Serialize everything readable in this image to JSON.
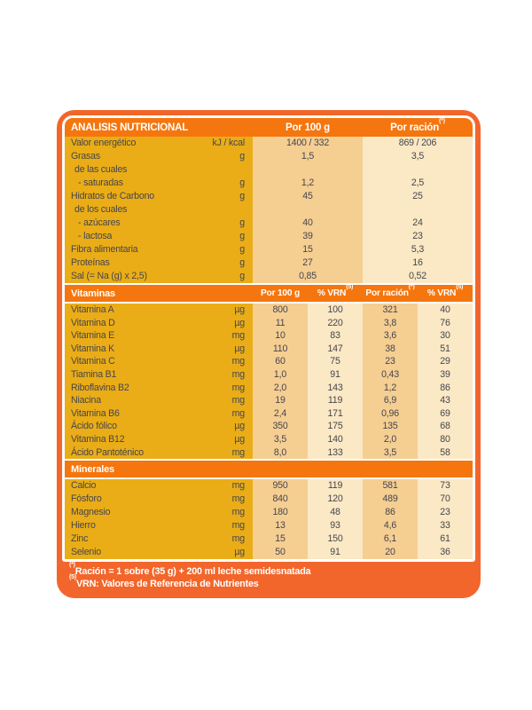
{
  "colors": {
    "frame_orange": "#F2662B",
    "band_orange": "#F5760E",
    "label_mustard": "#EAAD17",
    "col_tan": "#F5CE92",
    "col_cream": "#FBE8C4",
    "body_text": "#45454E",
    "header_text": "#FFFFFF"
  },
  "header": {
    "title": "ANALISIS NUTRICIONAL",
    "per100": "Por 100 g",
    "racion": "Por ración",
    "racion_sup": "(*)"
  },
  "macros": {
    "rows": [
      {
        "label": "Valor energético",
        "indent": 0,
        "unit": "kJ / kcal",
        "values": [
          "1400 / 332",
          "869 / 206"
        ]
      },
      {
        "label": "Grasas",
        "indent": 0,
        "unit": "g",
        "values": [
          "1,5",
          "3,5"
        ]
      },
      {
        "label": "de las cuales",
        "indent": 1,
        "unit": "",
        "values": [
          "",
          ""
        ]
      },
      {
        "label": "- saturadas",
        "indent": 2,
        "unit": "g",
        "values": [
          "1,2",
          "2,5"
        ]
      },
      {
        "label": "Hidratos de Carbono",
        "indent": 0,
        "unit": "g",
        "values": [
          "45",
          "25"
        ]
      },
      {
        "label": "de los cuales",
        "indent": 1,
        "unit": "",
        "values": [
          "",
          ""
        ]
      },
      {
        "label": "- azúcares",
        "indent": 2,
        "unit": "g",
        "values": [
          "40",
          "24"
        ]
      },
      {
        "label": "- lactosa",
        "indent": 2,
        "unit": "g",
        "values": [
          "39",
          "23"
        ]
      },
      {
        "label": "Fibra alimentaria",
        "indent": 0,
        "unit": "g",
        "values": [
          "15",
          "5,3"
        ]
      },
      {
        "label": "Proteínas",
        "indent": 0,
        "unit": "g",
        "values": [
          "27",
          "16"
        ]
      },
      {
        "label": "Sal (= Na (g) x 2,5)",
        "indent": 0,
        "unit": "g",
        "values": [
          "0,85",
          "0,52"
        ]
      }
    ]
  },
  "vitaminas": {
    "title": "Vitaminas",
    "columns": [
      {
        "label": "Por 100 g",
        "sup": ""
      },
      {
        "label": "% VRN",
        "sup": "(5)"
      },
      {
        "label": "Por ración",
        "sup": "(*)"
      },
      {
        "label": "% VRN",
        "sup": "(5)"
      }
    ],
    "rows": [
      {
        "label": "Vitamina A",
        "indent": 0,
        "unit": "µg",
        "values": [
          "800",
          "100",
          "321",
          "40"
        ]
      },
      {
        "label": "Vitamina D",
        "indent": 0,
        "unit": "µg",
        "values": [
          "11",
          "220",
          "3,8",
          "76"
        ]
      },
      {
        "label": "Vitamina E",
        "indent": 0,
        "unit": "mg",
        "values": [
          "10",
          "83",
          "3,6",
          "30"
        ]
      },
      {
        "label": "Vitamina K",
        "indent": 0,
        "unit": "µg",
        "values": [
          "110",
          "147",
          "38",
          "51"
        ]
      },
      {
        "label": "Vitamina C",
        "indent": 0,
        "unit": "mg",
        "values": [
          "60",
          "75",
          "23",
          "29"
        ]
      },
      {
        "label": "Tiamina B1",
        "indent": 0,
        "unit": "mg",
        "values": [
          "1,0",
          "91",
          "0,43",
          "39"
        ]
      },
      {
        "label": "Riboflavina B2",
        "indent": 0,
        "unit": "mg",
        "values": [
          "2,0",
          "143",
          "1,2",
          "86"
        ]
      },
      {
        "label": "Niacina",
        "indent": 0,
        "unit": "mg",
        "values": [
          "19",
          "119",
          "6,9",
          "43"
        ]
      },
      {
        "label": "Vitamina B6",
        "indent": 0,
        "unit": "mg",
        "values": [
          "2,4",
          "171",
          "0,96",
          "69"
        ]
      },
      {
        "label": "Ácido fólico",
        "indent": 0,
        "unit": "µg",
        "values": [
          "350",
          "175",
          "135",
          "68"
        ]
      },
      {
        "label": "Vitamina B12",
        "indent": 0,
        "unit": "µg",
        "values": [
          "3,5",
          "140",
          "2,0",
          "80"
        ]
      },
      {
        "label": "Ácido Pantoténico",
        "indent": 0,
        "unit": "mg",
        "values": [
          "8,0",
          "133",
          "3,5",
          "58"
        ]
      }
    ]
  },
  "minerales": {
    "title": "Minerales",
    "rows": [
      {
        "label": "Calcio",
        "indent": 0,
        "unit": "mg",
        "values": [
          "950",
          "119",
          "581",
          "73"
        ]
      },
      {
        "label": "Fósforo",
        "indent": 0,
        "unit": "mg",
        "values": [
          "840",
          "120",
          "489",
          "70"
        ]
      },
      {
        "label": "Magnesio",
        "indent": 0,
        "unit": "mg",
        "values": [
          "180",
          "48",
          "86",
          "23"
        ]
      },
      {
        "label": "Hierro",
        "indent": 0,
        "unit": "mg",
        "values": [
          "13",
          "93",
          "4,6",
          "33"
        ]
      },
      {
        "label": "Zinc",
        "indent": 0,
        "unit": "mg",
        "values": [
          "15",
          "150",
          "6,1",
          "61"
        ]
      },
      {
        "label": "Selenio",
        "indent": 0,
        "unit": "µg",
        "values": [
          "50",
          "91",
          "20",
          "36"
        ]
      }
    ]
  },
  "footnotes": [
    {
      "sup": "(*)",
      "text": "Ración = 1 sobre (35 g) + 200 ml leche semidesnatada"
    },
    {
      "sup": "(5)",
      "text": "VRN: Valores de Referencia de Nutrientes"
    }
  ]
}
